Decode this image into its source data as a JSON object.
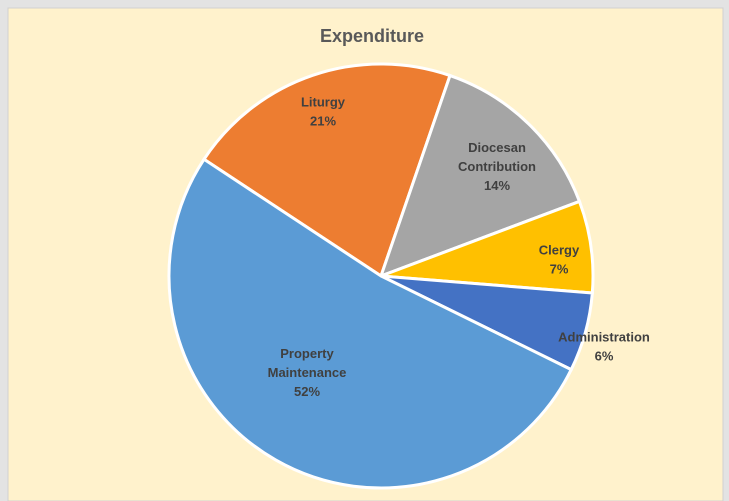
{
  "chart_data": {
    "type": "pie",
    "title": "Expenditure",
    "categories": [
      "Liturgy",
      "Diocesan Contribution",
      "Clergy",
      "Administration",
      "Property Maintenance"
    ],
    "values": [
      21,
      14,
      7,
      6,
      52
    ],
    "value_labels": [
      "21%",
      "14%",
      "7%",
      "6%",
      "52%"
    ],
    "colors": [
      "#ED7D31",
      "#A5A5A5",
      "#FFC000",
      "#4472C4",
      "#5B9BD5"
    ]
  }
}
